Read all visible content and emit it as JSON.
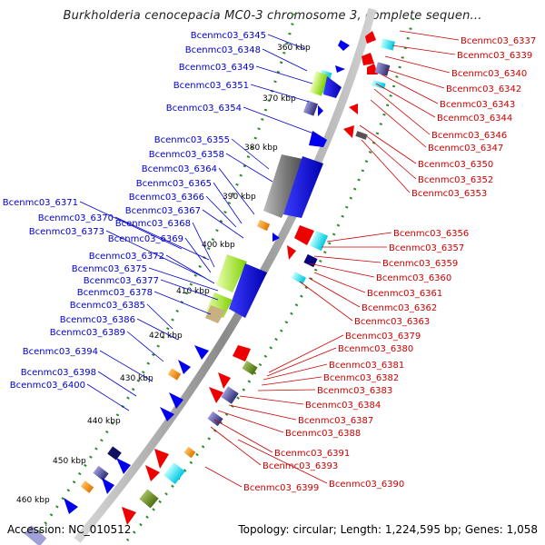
{
  "title": "Burkholderia cenocepacia MC0-3 chromosome 3, complete sequen...",
  "footer": {
    "accession": "Accession: NC_010512",
    "summary": "Topology: circular; Length: 1,224,595 bp; Genes: 1,058"
  },
  "colors": {
    "left_label": "#0000cc",
    "right_label": "#cc0000",
    "tick": "#2e8b2e",
    "backbone": "#9a9a9a"
  },
  "scale_labels": [
    "360 kbp",
    "370 kbp",
    "380 kbp",
    "390 kbp",
    "400 kbp",
    "410 kbp",
    "420 kbp",
    "430 kbp",
    "440 kbp",
    "450 kbp",
    "460 kbp"
  ],
  "left_genes": [
    "Bcenmc03_6345",
    "Bcenmc03_6348",
    "Bcenmc03_6349",
    "Bcenmc03_6351",
    "Bcenmc03_6354",
    "Bcenmc03_6355",
    "Bcenmc03_6358",
    "Bcenmc03_6364",
    "Bcenmc03_6365",
    "Bcenmc03_6366",
    "Bcenmc03_6371",
    "Bcenmc03_6367",
    "Bcenmc03_6370",
    "Bcenmc03_6368",
    "Bcenmc03_6373",
    "Bcenmc03_6369",
    "Bcenmc03_6372",
    "Bcenmc03_6375",
    "Bcenmc03_6377",
    "Bcenmc03_6378",
    "Bcenmc03_6385",
    "Bcenmc03_6386",
    "Bcenmc03_6389",
    "Bcenmc03_6394",
    "Bcenmc03_6398",
    "Bcenmc03_6400"
  ],
  "right_genes": [
    "Bcenmc03_6337",
    "Bcenmc03_6339",
    "Bcenmc03_6340",
    "Bcenmc03_6342",
    "Bcenmc03_6343",
    "Bcenmc03_6344",
    "Bcenmc03_6346",
    "Bcenmc03_6347",
    "Bcenmc03_6350",
    "Bcenmc03_6352",
    "Bcenmc03_6353",
    "Bcenmc03_6356",
    "Bcenmc03_6357",
    "Bcenmc03_6359",
    "Bcenmc03_6360",
    "Bcenmc03_6361",
    "Bcenmc03_6362",
    "Bcenmc03_6363",
    "Bcenmc03_6379",
    "Bcenmc03_6380",
    "Bcenmc03_6381",
    "Bcenmc03_6382",
    "Bcenmc03_6383",
    "Bcenmc03_6384",
    "Bcenmc03_6387",
    "Bcenmc03_6388",
    "Bcenmc03_6391",
    "Bcenmc03_6393",
    "Bcenmc03_6390",
    "Bcenmc03_6399"
  ]
}
